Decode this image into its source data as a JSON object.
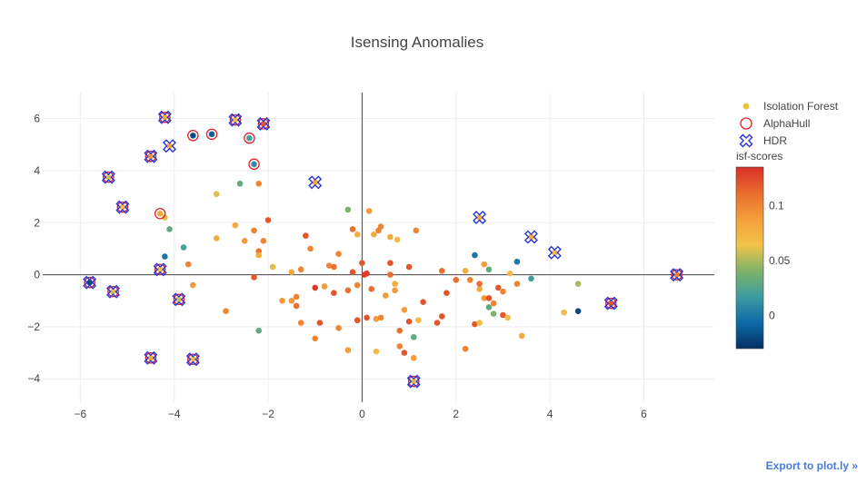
{
  "export_link": "Export to plot.ly »",
  "colors": {
    "isf_legend_marker": "#e8c53a",
    "alphahull": "#e0202a",
    "hdr": "#2a35d8",
    "zero_line": "#444444",
    "grid": "#eeeeee",
    "colorscale": [
      "#053061",
      "#0b6aa7",
      "#3d9ca0",
      "#7fb368",
      "#f2c24a",
      "#f49f3a",
      "#ea6c2d",
      "#d73027"
    ]
  },
  "chart_data": {
    "type": "scatter",
    "title": "Isensing Anomalies",
    "xlabel": "",
    "ylabel": "",
    "xlim": [
      -6.8,
      7.5
    ],
    "ylim": [
      -4.9,
      7.0
    ],
    "xticks": [
      "−6",
      "−4",
      "−2",
      "0",
      "2",
      "4",
      "6"
    ],
    "xtick_values": [
      -6,
      -4,
      -2,
      0,
      2,
      4,
      6
    ],
    "yticks": [
      "−4",
      "−2",
      "0",
      "2",
      "4",
      "6"
    ],
    "ytick_values": [
      -4,
      -2,
      0,
      2,
      4,
      6
    ],
    "grid": true,
    "legend_placement": "right",
    "legend": [
      "Isolation Forest",
      "AlphaHull",
      "HDR"
    ],
    "colorbar": {
      "title": "isf-scores",
      "range": [
        -0.03,
        0.135
      ],
      "ticks": [
        "0",
        "0.05",
        "0.1"
      ],
      "tick_values": [
        0,
        0.05,
        0.1
      ]
    },
    "series": [
      {
        "name": "Isolation Forest",
        "marker": "dot",
        "points": [
          [
            -5.8,
            -0.3,
            -0.02
          ],
          [
            -5.3,
            -0.65,
            0.06
          ],
          [
            -5.4,
            3.75,
            0.06
          ],
          [
            -5.1,
            2.6,
            0.07
          ],
          [
            -4.5,
            4.55,
            0.09
          ],
          [
            -4.5,
            -3.2,
            0.08
          ],
          [
            -4.3,
            2.35,
            0.08
          ],
          [
            -4.3,
            0.2,
            0.07
          ],
          [
            -4.2,
            6.05,
            0.08
          ],
          [
            -4.1,
            4.95,
            0.08
          ],
          [
            -3.9,
            -0.95,
            0.06
          ],
          [
            -3.6,
            5.35,
            -0.02
          ],
          [
            -3.6,
            -3.25,
            0.07
          ],
          [
            -3.2,
            5.4,
            -0.01
          ],
          [
            -2.4,
            5.25,
            0.02
          ],
          [
            -2.3,
            4.25,
            0.01
          ],
          [
            -2.7,
            5.95,
            0.07
          ],
          [
            -2.1,
            5.8,
            0.12
          ],
          [
            -1.0,
            3.55,
            0.08
          ],
          [
            2.5,
            2.2,
            0.08
          ],
          [
            3.6,
            1.45,
            0.08
          ],
          [
            4.1,
            0.85,
            0.07
          ],
          [
            5.3,
            -1.1,
            0.12
          ],
          [
            6.7,
            0.0,
            0.1
          ],
          [
            1.1,
            -4.1,
            0.06
          ],
          [
            -3.1,
            3.1,
            0.06
          ],
          [
            -2.6,
            3.5,
            0.03
          ],
          [
            -2.2,
            3.5,
            0.1
          ],
          [
            -4.2,
            2.2,
            0.06
          ],
          [
            -4.1,
            1.75,
            0.03
          ],
          [
            -3.7,
            0.4,
            0.1
          ],
          [
            -4.2,
            0.7,
            0.0
          ],
          [
            -3.8,
            1.05,
            0.02
          ],
          [
            -3.6,
            -0.4,
            0.09
          ],
          [
            -2.9,
            -1.4,
            0.1
          ],
          [
            -2.7,
            1.9,
            0.08
          ],
          [
            -2.5,
            1.3,
            0.09
          ],
          [
            -2.3,
            1.7,
            0.1
          ],
          [
            -2.2,
            0.9,
            0.11
          ],
          [
            -2.1,
            1.3,
            0.1
          ],
          [
            -2.0,
            2.1,
            0.12
          ],
          [
            -2.2,
            0.75,
            0.08
          ],
          [
            -2.3,
            -0.1,
            0.12
          ],
          [
            -1.9,
            0.3,
            0.06
          ],
          [
            -3.1,
            1.4,
            0.08
          ],
          [
            -2.2,
            -2.15,
            0.03
          ],
          [
            -1.7,
            -1.0,
            0.09
          ],
          [
            -1.5,
            -1.0,
            0.09
          ],
          [
            -1.5,
            0.1,
            0.08
          ],
          [
            -1.4,
            -0.85,
            0.1
          ],
          [
            -1.4,
            -1.2,
            0.11
          ],
          [
            -1.3,
            0.2,
            0.1
          ],
          [
            -1.3,
            -1.85,
            0.1
          ],
          [
            -1.2,
            1.5,
            0.12
          ],
          [
            -1.1,
            1.0,
            0.1
          ],
          [
            -1.0,
            -0.5,
            0.13
          ],
          [
            -1.0,
            -2.45,
            0.1
          ],
          [
            -0.9,
            -1.85,
            0.12
          ],
          [
            -0.8,
            -0.45,
            0.09
          ],
          [
            -0.7,
            0.35,
            0.1
          ],
          [
            -0.6,
            0.3,
            0.11
          ],
          [
            -0.6,
            -0.7,
            0.12
          ],
          [
            -0.5,
            -2.05,
            0.1
          ],
          [
            -0.5,
            0.8,
            0.1
          ],
          [
            -0.3,
            2.5,
            0.04
          ],
          [
            -0.3,
            -2.9,
            0.09
          ],
          [
            -0.3,
            -0.6,
            0.11
          ],
          [
            -0.2,
            0.1,
            0.12
          ],
          [
            -0.2,
            1.75,
            0.11
          ],
          [
            -0.1,
            1.55,
            0.08
          ],
          [
            -0.1,
            -0.4,
            0.1
          ],
          [
            -0.1,
            -1.75,
            0.12
          ],
          [
            0.0,
            0.45,
            0.12
          ],
          [
            0.05,
            0.0,
            0.13
          ],
          [
            0.1,
            0.05,
            0.13
          ],
          [
            0.1,
            -1.65,
            0.12
          ],
          [
            0.15,
            2.45,
            0.09
          ],
          [
            0.2,
            -0.55,
            0.11
          ],
          [
            0.25,
            1.55,
            0.08
          ],
          [
            0.3,
            -1.7,
            0.09
          ],
          [
            0.3,
            -2.95,
            0.07
          ],
          [
            0.35,
            1.7,
            0.1
          ],
          [
            0.4,
            -1.65,
            0.1
          ],
          [
            0.4,
            1.85,
            0.1
          ],
          [
            0.5,
            -0.8,
            0.09
          ],
          [
            0.6,
            1.45,
            0.08
          ],
          [
            0.6,
            0.45,
            0.12
          ],
          [
            0.6,
            0.0,
            0.11
          ],
          [
            0.7,
            -0.6,
            0.09
          ],
          [
            0.7,
            -0.35,
            0.08
          ],
          [
            0.75,
            1.35,
            0.07
          ],
          [
            0.8,
            -2.15,
            0.11
          ],
          [
            0.8,
            -2.75,
            0.1
          ],
          [
            0.9,
            -1.35,
            0.09
          ],
          [
            0.9,
            -3.0,
            0.12
          ],
          [
            1.0,
            0.3,
            0.12
          ],
          [
            1.0,
            -1.8,
            0.12
          ],
          [
            1.1,
            -2.4,
            0.03
          ],
          [
            1.1,
            -3.2,
            0.09
          ],
          [
            1.15,
            1.7,
            0.1
          ],
          [
            1.2,
            -1.75,
            0.07
          ],
          [
            1.3,
            -1.05,
            0.12
          ],
          [
            1.6,
            -1.85,
            0.12
          ],
          [
            1.7,
            -1.6,
            0.12
          ],
          [
            1.7,
            0.15,
            0.11
          ],
          [
            1.8,
            -0.7,
            0.12
          ],
          [
            2.0,
            -0.2,
            0.11
          ],
          [
            2.2,
            0.15,
            0.08
          ],
          [
            2.2,
            -2.85,
            0.1
          ],
          [
            2.3,
            -0.2,
            0.1
          ],
          [
            2.4,
            0.75,
            0.0
          ],
          [
            2.4,
            -1.9,
            0.12
          ],
          [
            2.5,
            -0.55,
            0.08
          ],
          [
            2.5,
            -1.85,
            0.07
          ],
          [
            2.5,
            -0.35,
            0.11
          ],
          [
            2.6,
            0.4,
            0.09
          ],
          [
            2.6,
            -0.9,
            0.09
          ],
          [
            2.7,
            0.2,
            0.03
          ],
          [
            2.7,
            -0.9,
            0.12
          ],
          [
            2.7,
            -1.25,
            0.03
          ],
          [
            2.8,
            -1.5,
            0.04
          ],
          [
            2.8,
            -1.1,
            0.1
          ],
          [
            2.9,
            -0.5,
            0.12
          ],
          [
            3.0,
            -0.65,
            0.1
          ],
          [
            3.0,
            -1.55,
            0.12
          ],
          [
            3.1,
            -1.65,
            0.07
          ],
          [
            3.15,
            0.05,
            0.07
          ],
          [
            3.3,
            0.5,
            0.0
          ],
          [
            3.3,
            -0.35,
            0.1
          ],
          [
            3.4,
            -2.35,
            0.08
          ],
          [
            3.6,
            -0.15,
            0.02
          ],
          [
            4.3,
            -1.45,
            0.07
          ],
          [
            4.6,
            -0.35,
            0.05
          ],
          [
            4.6,
            -1.4,
            -0.02
          ]
        ]
      },
      {
        "name": "AlphaHull",
        "marker": "circle-open",
        "points": [
          [
            -5.8,
            -0.3
          ],
          [
            -5.3,
            -0.65
          ],
          [
            -5.4,
            3.75
          ],
          [
            -5.1,
            2.6
          ],
          [
            -4.5,
            4.55
          ],
          [
            -4.5,
            -3.2
          ],
          [
            -4.3,
            2.35
          ],
          [
            -4.3,
            0.2
          ],
          [
            -4.2,
            6.05
          ],
          [
            -3.9,
            -0.95
          ],
          [
            -3.6,
            5.35
          ],
          [
            -3.6,
            -3.25
          ],
          [
            -3.2,
            5.4
          ],
          [
            -2.4,
            5.25
          ],
          [
            -2.3,
            4.25
          ],
          [
            -2.7,
            5.95
          ],
          [
            -2.1,
            5.8
          ],
          [
            6.7,
            0.0
          ],
          [
            5.3,
            -1.1
          ],
          [
            1.1,
            -4.1
          ]
        ]
      },
      {
        "name": "HDR",
        "marker": "x-open",
        "points": [
          [
            -5.8,
            -0.3
          ],
          [
            -5.3,
            -0.65
          ],
          [
            -5.4,
            3.75
          ],
          [
            -5.1,
            2.6
          ],
          [
            -4.5,
            4.55
          ],
          [
            -4.5,
            -3.2
          ],
          [
            -4.3,
            0.2
          ],
          [
            -4.2,
            6.05
          ],
          [
            -4.1,
            4.95
          ],
          [
            -3.9,
            -0.95
          ],
          [
            -3.6,
            -3.25
          ],
          [
            -2.7,
            5.95
          ],
          [
            -2.1,
            5.8
          ],
          [
            -1.0,
            3.55
          ],
          [
            2.5,
            2.2
          ],
          [
            3.6,
            1.45
          ],
          [
            4.1,
            0.85
          ],
          [
            5.3,
            -1.1
          ],
          [
            6.7,
            0.0
          ],
          [
            1.1,
            -4.1
          ]
        ]
      }
    ]
  }
}
